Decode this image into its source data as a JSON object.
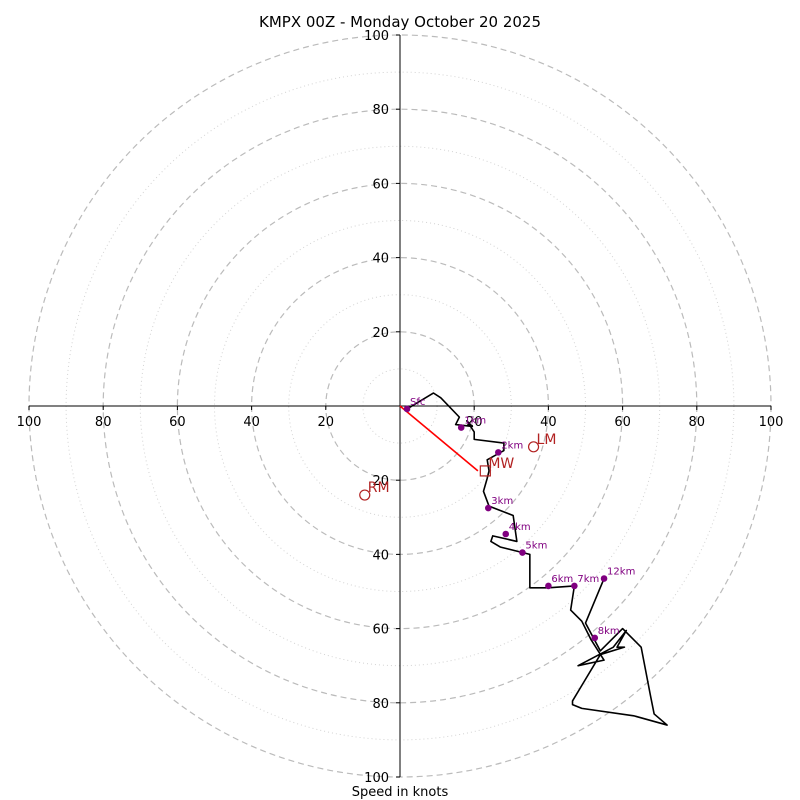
{
  "chart_data": {
    "type": "scatter",
    "title": "KMPX 00Z - Monday October 20 2025",
    "xlabel": "Speed in knots",
    "ylabel": "",
    "xlim": [
      -100,
      100
    ],
    "ylim": [
      -100,
      100
    ],
    "ring_major": [
      20,
      40,
      60,
      80,
      100
    ],
    "ring_minor": [
      10,
      30,
      50,
      70,
      90
    ],
    "x_ticks": [
      {
        "value": -100,
        "label": "100"
      },
      {
        "value": -80,
        "label": "80"
      },
      {
        "value": -60,
        "label": "60"
      },
      {
        "value": -40,
        "label": "40"
      },
      {
        "value": -20,
        "label": "20"
      },
      {
        "value": 20,
        "label": "20"
      },
      {
        "value": 40,
        "label": "40"
      },
      {
        "value": 60,
        "label": "60"
      },
      {
        "value": 80,
        "label": "80"
      },
      {
        "value": 100,
        "label": "100"
      }
    ],
    "y_ticks": [
      {
        "value": 100,
        "label": "100"
      },
      {
        "value": 80,
        "label": "80"
      },
      {
        "value": 60,
        "label": "60"
      },
      {
        "value": 40,
        "label": "40"
      },
      {
        "value": 20,
        "label": "20"
      },
      {
        "value": -20,
        "label": "20"
      },
      {
        "value": -40,
        "label": "40"
      },
      {
        "value": -60,
        "label": "60"
      },
      {
        "value": -80,
        "label": "80"
      },
      {
        "value": -100,
        "label": "100"
      }
    ],
    "hodograph": {
      "name": "hodograph",
      "color": "#000000",
      "points": [
        [
          1.9,
          -0.8
        ],
        [
          9,
          3.5
        ],
        [
          11,
          2.2
        ],
        [
          16,
          -3
        ],
        [
          15,
          -5
        ],
        [
          19.5,
          -5.5
        ],
        [
          18,
          -4
        ],
        [
          20,
          -7
        ],
        [
          20,
          -9
        ],
        [
          28,
          -10
        ],
        [
          28,
          -12
        ],
        [
          23.5,
          -14.5
        ],
        [
          24,
          -17.5
        ],
        [
          23.5,
          -19.5
        ],
        [
          22.5,
          -23
        ],
        [
          24,
          -27
        ],
        [
          30.5,
          -29.5
        ],
        [
          31.5,
          -36.5
        ],
        [
          25,
          -35
        ],
        [
          24.5,
          -36.5
        ],
        [
          27,
          -38
        ],
        [
          35,
          -40
        ],
        [
          35,
          -49
        ],
        [
          40,
          -49
        ],
        [
          47,
          -48.5
        ],
        [
          46,
          -55
        ],
        [
          49,
          -58
        ],
        [
          51.5,
          -63
        ],
        [
          55,
          -68.5
        ],
        [
          48,
          -70
        ],
        [
          57.5,
          -65
        ],
        [
          61,
          -60.5
        ],
        [
          58.5,
          -65
        ],
        [
          60.5,
          -65
        ],
        [
          54,
          -67
        ],
        [
          49.5,
          -74.5
        ],
        [
          46.5,
          -79.5
        ],
        [
          46.5,
          -80.5
        ],
        [
          49,
          -81.5
        ],
        [
          63,
          -83.5
        ],
        [
          72,
          -86
        ],
        [
          68.5,
          -83
        ],
        [
          67.5,
          -78
        ],
        [
          65,
          -65
        ],
        [
          60,
          -60
        ],
        [
          54,
          -66
        ],
        [
          50,
          -58.5
        ],
        [
          55,
          -46.5
        ]
      ]
    },
    "height_markers": [
      {
        "label": "Sfc",
        "x": 1.9,
        "y": -0.8
      },
      {
        "label": "1km",
        "x": 16.5,
        "y": -5.8
      },
      {
        "label": "2km",
        "x": 26.5,
        "y": -12.5
      },
      {
        "label": "3km",
        "x": 23.8,
        "y": -27.5
      },
      {
        "label": "4km",
        "x": 28.5,
        "y": -34.5
      },
      {
        "label": "5km",
        "x": 33,
        "y": -39.5
      },
      {
        "label": "6km",
        "x": 40,
        "y": -48.5
      },
      {
        "label": "7km",
        "x": 47,
        "y": -48.5
      },
      {
        "label": "8km",
        "x": 52.5,
        "y": -62.5
      },
      {
        "label": "12km",
        "x": 55,
        "y": -46.5
      }
    ],
    "storm_motion": [
      {
        "label": "LM",
        "x": 36,
        "y": -11,
        "marker": "circle"
      },
      {
        "label": "MW",
        "x": 23,
        "y": -17.5,
        "marker": "square"
      },
      {
        "label": "RM",
        "x": -9.5,
        "y": -24,
        "marker": "circle"
      }
    ],
    "shear_vector": {
      "from": [
        0,
        0
      ],
      "to": [
        21,
        -17.5
      ],
      "color": "#ff0000"
    }
  }
}
